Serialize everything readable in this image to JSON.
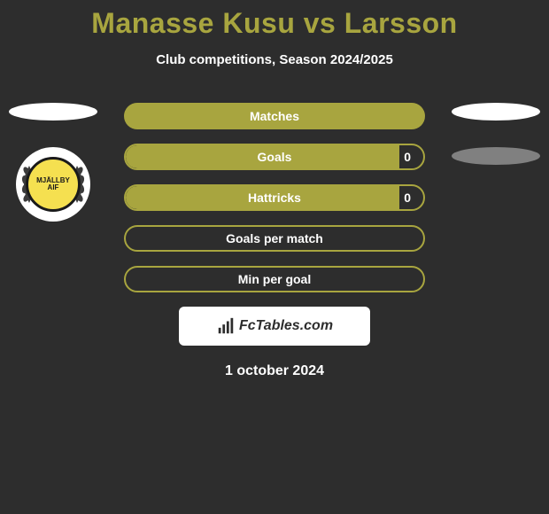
{
  "title": "Manasse Kusu vs Larsson",
  "subtitle": "Club competitions, Season 2024/2025",
  "club_badge_text_top": "MJÄLLBY",
  "club_badge_text_bottom": "AIF",
  "stats": [
    {
      "label": "Matches",
      "fill": "full",
      "fill_pct": 100,
      "value_right": null
    },
    {
      "label": "Goals",
      "fill": "partial",
      "fill_pct": 92,
      "value_right": "0"
    },
    {
      "label": "Hattricks",
      "fill": "partial",
      "fill_pct": 92,
      "value_right": "0"
    },
    {
      "label": "Goals per match",
      "fill": "outline",
      "fill_pct": 0,
      "value_right": null
    },
    {
      "label": "Min per goal",
      "fill": "outline",
      "fill_pct": 0,
      "value_right": null
    }
  ],
  "logo_text": "FcTables.com",
  "date_text": "1 october 2024",
  "colors": {
    "background": "#2d2d2d",
    "accent": "#a8a53f",
    "text": "#ffffff",
    "badge_yellow": "#f5e050",
    "oval_gray": "#808080"
  }
}
